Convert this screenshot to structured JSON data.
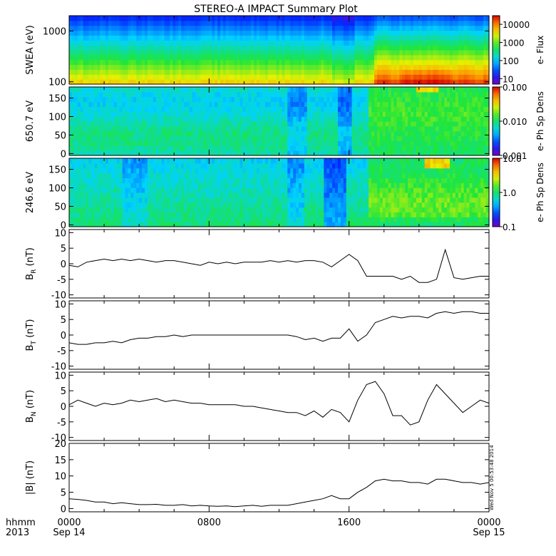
{
  "title": "STEREO-A IMPACT Summary Plot",
  "footer": {
    "row1_left": "hhmm",
    "row2_left": "2013"
  },
  "timestamp_stamp": "Wed Nov  5 00:53:48 2014",
  "x_axis": {
    "ticks": [
      {
        "hour": 0,
        "label": "0000",
        "sublabel": "Sep 14"
      },
      {
        "hour": 8,
        "label": "0800",
        "sublabel": ""
      },
      {
        "hour": 16,
        "label": "1600",
        "sublabel": ""
      },
      {
        "hour": 24,
        "label": "0000",
        "sublabel": "Sep 15"
      }
    ]
  },
  "chart_data": [
    {
      "type": "heatmap",
      "name": "swea",
      "ylabel": "SWEA (eV)",
      "yscale": "log",
      "yrange": [
        90,
        2000
      ],
      "ytick_values": [
        100,
        1000
      ],
      "ytick_labels": [
        "100",
        "1000"
      ],
      "colorbar": {
        "label": "e- Flux",
        "scale": "log",
        "range": [
          5,
          30000
        ],
        "tick_values": [
          10,
          100,
          1000,
          10000
        ],
        "tick_labels": [
          "10",
          "100",
          "1000",
          "10000"
        ]
      }
    },
    {
      "type": "heatmap",
      "name": "pad650",
      "ylabel": "650.7 eV",
      "yrange": [
        -5,
        180
      ],
      "ytick_values": [
        0,
        50,
        100,
        150
      ],
      "ytick_labels": [
        "0",
        "50",
        "100",
        "150"
      ],
      "colorbar": {
        "label": "e- Ph Sp Dens",
        "scale": "log",
        "range": [
          0.001,
          0.1
        ],
        "tick_values": [
          0.001,
          0.01,
          0.1
        ],
        "tick_labels": [
          "0.001",
          "0.010",
          "0.100"
        ]
      }
    },
    {
      "type": "heatmap",
      "name": "pad246",
      "ylabel": "246.6 eV",
      "yrange": [
        -5,
        180
      ],
      "ytick_values": [
        0,
        50,
        100,
        150
      ],
      "ytick_labels": [
        "0",
        "50",
        "100",
        "150"
      ],
      "colorbar": {
        "label": "e- Ph Sp Dens",
        "scale": "log",
        "range": [
          0.1,
          10
        ],
        "tick_values": [
          0.1,
          1,
          10
        ],
        "tick_labels": [
          "0.1",
          "1.0",
          "10.0"
        ]
      }
    },
    {
      "type": "line",
      "name": "br",
      "ylabel_main": "B",
      "ylabel_sub": "R",
      "ylabel_unit": " (nT)",
      "yrange": [
        -11,
        11
      ],
      "ytick_values": [
        -10,
        -5,
        0,
        5,
        10
      ],
      "ytick_labels": [
        "-10",
        "-5",
        "0",
        "5",
        "10"
      ],
      "x": [
        0,
        0.5,
        1,
        1.5,
        2,
        2.5,
        3,
        3.5,
        4,
        4.5,
        5,
        5.5,
        6,
        6.5,
        7,
        7.5,
        8,
        8.5,
        9,
        9.5,
        10,
        10.5,
        11,
        11.5,
        12,
        12.5,
        13,
        13.5,
        14,
        14.5,
        15,
        15.5,
        16,
        16.5,
        17,
        17.5,
        18,
        18.5,
        19,
        19.5,
        20,
        20.5,
        21,
        21.5,
        22,
        22.5,
        23,
        23.5,
        24
      ],
      "y": [
        -0.5,
        -1,
        0.5,
        1,
        1.5,
        1,
        1.5,
        1,
        1.5,
        1,
        0.5,
        1,
        1,
        0.5,
        0,
        -0.5,
        0.5,
        0,
        0.5,
        0,
        0.5,
        0.5,
        0.5,
        1,
        0.5,
        1,
        0.5,
        1,
        1,
        0.5,
        -1,
        1,
        3,
        1,
        -4,
        -4,
        -4,
        -4,
        -5,
        -4,
        -6,
        -6,
        -5,
        4.5,
        -4.5,
        -5,
        -4.5,
        -4,
        -4
      ]
    },
    {
      "type": "line",
      "name": "bt",
      "ylabel_main": "B",
      "ylabel_sub": "T",
      "ylabel_unit": " (nT)",
      "yrange": [
        -11,
        11
      ],
      "ytick_values": [
        -10,
        -5,
        0,
        5,
        10
      ],
      "ytick_labels": [
        "-10",
        "-5",
        "0",
        "5",
        "10"
      ],
      "x": [
        0,
        0.5,
        1,
        1.5,
        2,
        2.5,
        3,
        3.5,
        4,
        4.5,
        5,
        5.5,
        6,
        6.5,
        7,
        7.5,
        8,
        8.5,
        9,
        9.5,
        10,
        10.5,
        11,
        11.5,
        12,
        12.5,
        13,
        13.5,
        14,
        14.5,
        15,
        15.5,
        16,
        16.5,
        17,
        17.5,
        18,
        18.5,
        19,
        19.5,
        20,
        20.5,
        21,
        21.5,
        22,
        22.5,
        23,
        23.5,
        24
      ],
      "y": [
        -2.5,
        -3,
        -3,
        -2.5,
        -2.5,
        -2,
        -2.5,
        -1.5,
        -1,
        -1,
        -0.5,
        -0.5,
        0,
        -0.5,
        0,
        0,
        0,
        0,
        0,
        0,
        0,
        0,
        0,
        0,
        0,
        0,
        -0.5,
        -1.5,
        -1,
        -2,
        -1,
        -1,
        2,
        -2,
        0,
        4,
        5,
        6,
        5.5,
        6,
        6,
        5.5,
        7,
        7.5,
        7,
        7.5,
        7.5,
        7,
        7
      ]
    },
    {
      "type": "line",
      "name": "bn",
      "ylabel_main": "B",
      "ylabel_sub": "N",
      "ylabel_unit": " (nT)",
      "yrange": [
        -11,
        11
      ],
      "ytick_values": [
        -10,
        -5,
        0,
        5,
        10
      ],
      "ytick_labels": [
        "-10",
        "-5",
        "0",
        "5",
        "10"
      ],
      "x": [
        0,
        0.5,
        1,
        1.5,
        2,
        2.5,
        3,
        3.5,
        4,
        4.5,
        5,
        5.5,
        6,
        6.5,
        7,
        7.5,
        8,
        8.5,
        9,
        9.5,
        10,
        10.5,
        11,
        11.5,
        12,
        12.5,
        13,
        13.5,
        14,
        14.5,
        15,
        15.5,
        16,
        16.5,
        17,
        17.5,
        18,
        18.5,
        19,
        19.5,
        20,
        20.5,
        21,
        21.5,
        22,
        22.5,
        23,
        23.5,
        24
      ],
      "y": [
        0.5,
        2,
        1,
        0,
        1,
        0.5,
        1,
        2,
        1.5,
        2,
        2.5,
        1.5,
        2,
        1.5,
        1,
        1,
        0.5,
        0.5,
        0.5,
        0.5,
        0,
        0,
        -0.5,
        -1,
        -1.5,
        -2,
        -2,
        -3,
        -1.5,
        -3.5,
        -1,
        -2,
        -5,
        2,
        7,
        8,
        4,
        -3,
        -3,
        -6,
        -5,
        2,
        7,
        4,
        1,
        -2,
        0,
        2,
        1
      ]
    },
    {
      "type": "line",
      "name": "bmag",
      "ylabel_main": "|B| (nT)",
      "ylabel_sub": "",
      "ylabel_unit": "",
      "yrange": [
        -1,
        20
      ],
      "ytick_values": [
        0,
        5,
        10,
        15,
        20
      ],
      "ytick_labels": [
        "0",
        "5",
        "10",
        "15",
        "20"
      ],
      "x": [
        0,
        0.5,
        1,
        1.5,
        2,
        2.5,
        3,
        3.5,
        4,
        4.5,
        5,
        5.5,
        6,
        6.5,
        7,
        7.5,
        8,
        8.5,
        9,
        9.5,
        10,
        10.5,
        11,
        11.5,
        12,
        12.5,
        13,
        13.5,
        14,
        14.5,
        15,
        15.5,
        16,
        16.5,
        17,
        17.5,
        18,
        18.5,
        19,
        19.5,
        20,
        20.5,
        21,
        21.5,
        22,
        22.5,
        23,
        23.5,
        24
      ],
      "y": [
        3,
        2.8,
        2.5,
        2,
        2,
        1.5,
        1.8,
        1.5,
        1.2,
        1.2,
        1.3,
        1,
        1,
        1.2,
        0.8,
        1,
        0.8,
        0.7,
        0.8,
        0.6,
        0.8,
        1,
        0.7,
        1,
        1,
        1,
        1.5,
        2,
        2.5,
        3,
        4,
        3,
        3,
        5,
        6.5,
        8.5,
        9,
        8.5,
        8.5,
        8,
        8,
        7.5,
        9,
        9,
        8.5,
        8,
        8,
        7.5,
        8
      ]
    }
  ]
}
